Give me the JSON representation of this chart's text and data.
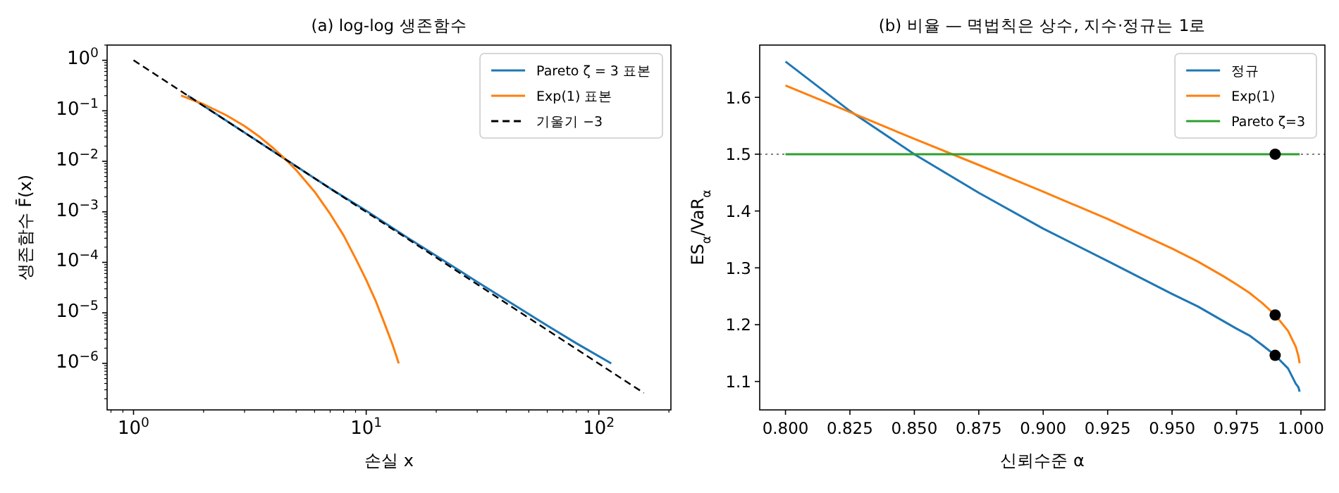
{
  "chart_data": [
    {
      "type": "line",
      "title": "(a) log-log 생존함수",
      "xlabel": "손실 x",
      "ylabel": "생존함수 F̄(x)",
      "log": "xy",
      "legend": "top right",
      "xlim": [
        0.77,
        204
      ],
      "ylim": [
        1.2e-07,
        2.0
      ],
      "xticks": [
        {
          "value": 1,
          "label": "10$^{0}$"
        },
        {
          "value": 10,
          "label": "10$^{1}$"
        },
        {
          "value": 100,
          "label": "10$^{2}$"
        }
      ],
      "yticks": [
        {
          "value": 1,
          "label": "10$^{0}$"
        },
        {
          "value": 0.1,
          "label": "10$^{−1}$"
        },
        {
          "value": 0.01,
          "label": "10$^{−2}$"
        },
        {
          "value": 0.001,
          "label": "10$^{−3}$"
        },
        {
          "value": 0.0001,
          "label": "10$^{−4}$"
        },
        {
          "value": 1e-05,
          "label": "10$^{−5}$"
        },
        {
          "value": 1e-06,
          "label": "10$^{−6}$"
        }
      ],
      "series": [
        {
          "name": "Pareto ζ = 3 표본",
          "color": "#1f77b4",
          "line_style": "solid",
          "x": [
            1.71,
            2,
            3,
            4,
            5,
            7,
            10,
            15,
            20,
            30,
            40,
            60,
            80,
            113
          ],
          "values": [
            0.2,
            0.125,
            0.037,
            0.0156,
            0.008,
            0.0029,
            0.00105,
            0.00031,
            0.000135,
            4.1e-05,
            1.8e-05,
            5.6e-06,
            2.5e-06,
            1e-06
          ]
        },
        {
          "name": "Exp(1) 표본",
          "color": "#ff7f0e",
          "line_style": "solid",
          "x": [
            1.6,
            2,
            2.5,
            3,
            3.5,
            4,
            4.5,
            5,
            6,
            7,
            8,
            9,
            10,
            11,
            12,
            13,
            13.8
          ],
          "values": [
            0.2,
            0.135,
            0.082,
            0.05,
            0.03,
            0.018,
            0.011,
            0.0067,
            0.0025,
            0.00091,
            0.00034,
            0.00012,
            4.5e-05,
            1.7e-05,
            6.1e-06,
            2.3e-06,
            1e-06
          ]
        },
        {
          "name": "기울기 −3",
          "color": "#000000",
          "line_style": "dashed",
          "x": [
            1,
            156
          ],
          "values": [
            1,
            2.6e-07
          ]
        }
      ]
    },
    {
      "type": "line",
      "title": "(b) 비율 — 멱법칙은 상수, 지수·정규는 1로",
      "xlabel": "신뢰수준 α",
      "ylabel": "ES$_{α}$/VaR$_{α}$",
      "legend": "top right",
      "xlim": [
        0.79,
        1.0093
      ],
      "ylim": [
        1.05,
        1.692
      ],
      "xticks": [
        {
          "value": 0.8,
          "label": "0.800"
        },
        {
          "value": 0.825,
          "label": "0.825"
        },
        {
          "value": 0.85,
          "label": "0.850"
        },
        {
          "value": 0.875,
          "label": "0.875"
        },
        {
          "value": 0.9,
          "label": "0.900"
        },
        {
          "value": 0.925,
          "label": "0.925"
        },
        {
          "value": 0.95,
          "label": "0.950"
        },
        {
          "value": 0.975,
          "label": "0.975"
        },
        {
          "value": 1.0,
          "label": "1.000"
        }
      ],
      "yticks": [
        1.1,
        1.2,
        1.3,
        1.4,
        1.5,
        1.6
      ],
      "ref_lines": [
        {
          "axis": "y",
          "value": 1.5,
          "color": "#808080",
          "line_style": "dotted"
        }
      ],
      "series": [
        {
          "name": "정규",
          "color": "#1f77b4",
          "line_style": "solid",
          "x": [
            0.8,
            0.825,
            0.85,
            0.875,
            0.9,
            0.925,
            0.95,
            0.96,
            0.97,
            0.975,
            0.98,
            0.985,
            0.99,
            0.995,
            0.998,
            0.999,
            0.9995
          ],
          "values": [
            1.663,
            1.576,
            1.5,
            1.432,
            1.369,
            1.312,
            1.254,
            1.232,
            1.206,
            1.193,
            1.181,
            1.164,
            1.146,
            1.123,
            1.096,
            1.09,
            1.082
          ]
        },
        {
          "name": "Exp(1)",
          "color": "#ff7f0e",
          "line_style": "solid",
          "x": [
            0.8,
            0.825,
            0.85,
            0.875,
            0.9,
            0.925,
            0.95,
            0.96,
            0.97,
            0.975,
            0.98,
            0.985,
            0.99,
            0.995,
            0.998,
            0.999,
            0.9995
          ],
          "values": [
            1.621,
            1.574,
            1.527,
            1.481,
            1.434,
            1.386,
            1.334,
            1.311,
            1.285,
            1.271,
            1.256,
            1.238,
            1.217,
            1.189,
            1.161,
            1.145,
            1.132
          ]
        },
        {
          "name": "Pareto ζ=3",
          "color": "#2ca02c",
          "line_style": "solid",
          "x": [
            0.8,
            0.9995
          ],
          "values": [
            1.5,
            1.5
          ]
        },
        {
          "type": "scatter",
          "color": "#000000",
          "marker": "circle",
          "x": [
            0.99,
            0.99,
            0.99
          ],
          "values": [
            1.5,
            1.217,
            1.146
          ]
        }
      ]
    }
  ]
}
